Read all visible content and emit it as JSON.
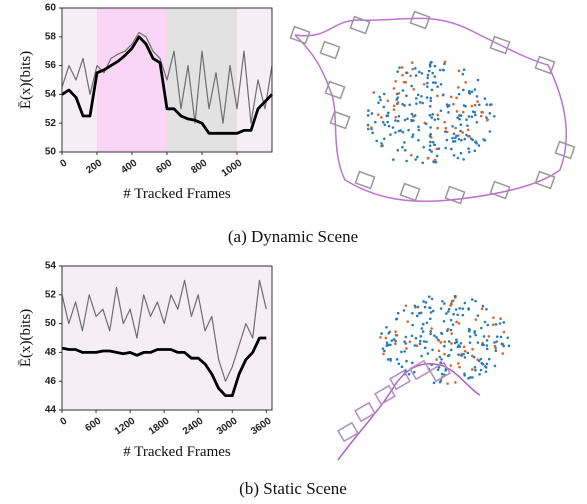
{
  "chart_data": [
    {
      "type": "line",
      "y_label": "Ē(x)(bits)",
      "x_label": "# Tracked Frames",
      "x": [
        0,
        40,
        80,
        120,
        160,
        200,
        240,
        280,
        320,
        360,
        400,
        440,
        480,
        520,
        560,
        600,
        640,
        680,
        720,
        760,
        800,
        840,
        880,
        920,
        960,
        1000,
        1040,
        1080,
        1120,
        1160,
        1200
      ],
      "series": [
        {
          "color": "#6e6e6e",
          "values": [
            54.5,
            56,
            55,
            56.5,
            54,
            56,
            55.5,
            56.5,
            56.8,
            57,
            57.5,
            58.3,
            58,
            57,
            56.5,
            55,
            57,
            53,
            56,
            52,
            57,
            53,
            55.5,
            52,
            56,
            53,
            57,
            52,
            55,
            53,
            56
          ]
        },
        {
          "color": "#000000",
          "values": [
            54,
            54.3,
            53.8,
            52.5,
            52.5,
            55.5,
            55.7,
            56,
            56.3,
            56.7,
            57.2,
            58,
            57.5,
            56.5,
            56.2,
            53,
            53,
            52.5,
            52.3,
            52.2,
            52,
            51.3,
            51.3,
            51.3,
            51.3,
            51.3,
            51.5,
            51.5,
            53,
            53.5,
            54
          ]
        }
      ],
      "shaded_regions": [
        {
          "xrange": [
            200,
            600
          ],
          "color": "#f9d6f5"
        },
        {
          "xrange": [
            600,
            1000
          ],
          "color": "#e2e2e2"
        }
      ],
      "plot_background": "#f6eef5",
      "xlim": [
        0,
        1200
      ],
      "xticks": [
        0,
        200,
        400,
        600,
        800,
        1000
      ],
      "ylim": [
        50,
        60
      ],
      "yticks": [
        50,
        52,
        54,
        56,
        58,
        60
      ],
      "grid": false
    },
    {
      "type": "line",
      "y_label": "Ē(x)(bits)",
      "x_label": "# Tracked Frames",
      "x": [
        0,
        120,
        240,
        360,
        480,
        600,
        720,
        840,
        960,
        1080,
        1200,
        1320,
        1440,
        1560,
        1680,
        1800,
        1920,
        2040,
        2160,
        2280,
        2400,
        2520,
        2640,
        2760,
        2880,
        3000,
        3120,
        3240,
        3360,
        3480,
        3600
      ],
      "series": [
        {
          "color": "#6e6e6e",
          "values": [
            52,
            50,
            51.5,
            49.5,
            52,
            50.5,
            51,
            49.5,
            52.5,
            50,
            51,
            49,
            52,
            50.5,
            51.5,
            50,
            52,
            51,
            53,
            50.5,
            52,
            49.5,
            50.5,
            47.5,
            46,
            47,
            48.5,
            50,
            49,
            53,
            51
          ]
        },
        {
          "color": "#000000",
          "values": [
            48.3,
            48.2,
            48.2,
            48,
            48,
            48,
            48.1,
            48.1,
            48,
            47.9,
            48,
            47.8,
            48,
            48,
            48.2,
            48.2,
            48.2,
            48,
            48,
            47.6,
            47.6,
            47.2,
            46.5,
            45.5,
            45,
            45,
            46.5,
            47.5,
            48,
            49,
            49
          ]
        }
      ],
      "shaded_regions": [],
      "plot_background": "#f6eef5",
      "xlim": [
        0,
        3700
      ],
      "xticks": [
        0,
        600,
        1200,
        1800,
        2400,
        3000,
        3600
      ],
      "ylim": [
        44,
        54
      ],
      "yticks": [
        44,
        46,
        48,
        50,
        52,
        54
      ],
      "grid": false
    }
  ],
  "captions": [
    "(a) Dynamic Scene",
    "(b) Static Scene"
  ]
}
